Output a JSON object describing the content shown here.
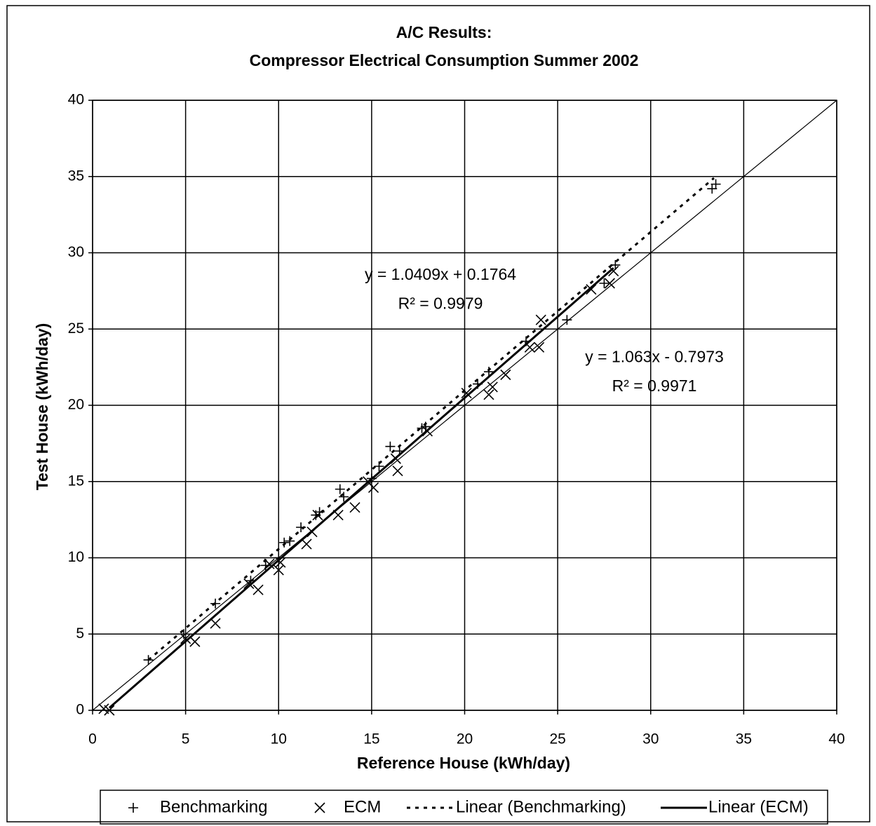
{
  "chart_data": {
    "type": "scatter",
    "title": "A/C Results:",
    "subtitle": "Compressor Electrical Consumption Summer 2002",
    "x_label": "Reference House  (kWh/day)",
    "y_label": "Test House  (kWh/day)",
    "xlim": [
      0,
      40
    ],
    "ylim": [
      0,
      40
    ],
    "xticks": [
      0,
      5,
      10,
      15,
      20,
      25,
      30,
      35,
      40
    ],
    "yticks": [
      0,
      5,
      10,
      15,
      20,
      25,
      30,
      35,
      40
    ],
    "grid": true,
    "legend": "bottom",
    "series": [
      {
        "name": "Benchmarking",
        "marker": "+",
        "color": "#000000",
        "x": [
          3,
          4.9,
          6.6,
          8.5,
          9.3,
          10,
          10.3,
          10.6,
          11.2,
          12,
          12.2,
          13.3,
          13.5,
          15,
          15.4,
          16,
          16.5,
          17.7,
          17.9,
          20.7,
          21.3,
          23.3,
          25.5,
          27.5,
          28.1,
          33.3,
          33.5
        ],
        "values": [
          3.3,
          5,
          7,
          8.5,
          9.5,
          10,
          11,
          11.1,
          12,
          12.8,
          13,
          14.5,
          14,
          15.2,
          16,
          17.3,
          17,
          18.5,
          18.6,
          21.4,
          22.2,
          24.2,
          25.6,
          28,
          29.2,
          34.2,
          34.5
        ]
      },
      {
        "name": "ECM",
        "marker": "x",
        "color": "#000000",
        "x": [
          0.6,
          0.9,
          5,
          5.5,
          6.6,
          8.4,
          8.9,
          9.5,
          10,
          10.1,
          11.5,
          11.8,
          12.1,
          13.2,
          14.1,
          14.8,
          15.1,
          16.3,
          16.4,
          18,
          20.1,
          21.3,
          21.5,
          22.2,
          23.5,
          24,
          24.1,
          26.8,
          27.8,
          28
        ],
        "values": [
          0.1,
          0,
          4.7,
          4.5,
          5.7,
          8.3,
          7.9,
          9.6,
          9.2,
          9.7,
          10.9,
          11.7,
          12.8,
          12.8,
          13.3,
          15,
          14.6,
          16.5,
          15.7,
          18.3,
          20.8,
          20.7,
          21.2,
          22,
          23.8,
          23.8,
          25.6,
          27.6,
          28,
          28.8
        ]
      }
    ],
    "trendlines": [
      {
        "name": "Linear (Benchmarking)",
        "style": "dashed",
        "color": "#000000",
        "x": [
          3,
          33.4
        ],
        "values": [
          3.3,
          34.9
        ]
      },
      {
        "name": "Linear (ECM)",
        "style": "solid",
        "color": "#000000",
        "x": [
          0.9,
          28
        ],
        "values": [
          0.16,
          29
        ]
      },
      {
        "style": "thin",
        "color": "#000000",
        "x": [
          0,
          40
        ],
        "values": [
          0,
          40
        ]
      }
    ],
    "annotations": [
      {
        "text": "y = 1.0409x + 0.1764",
        "x": 18.7,
        "y": 28.5
      },
      {
        "text": "R² = 0.9979",
        "x": 18.7,
        "y": 26.6
      },
      {
        "text": "y = 1.063x - 0.7973",
        "x": 30.2,
        "y": 23.1
      },
      {
        "text": "R² = 0.9971",
        "x": 30.2,
        "y": 21.2
      }
    ]
  }
}
